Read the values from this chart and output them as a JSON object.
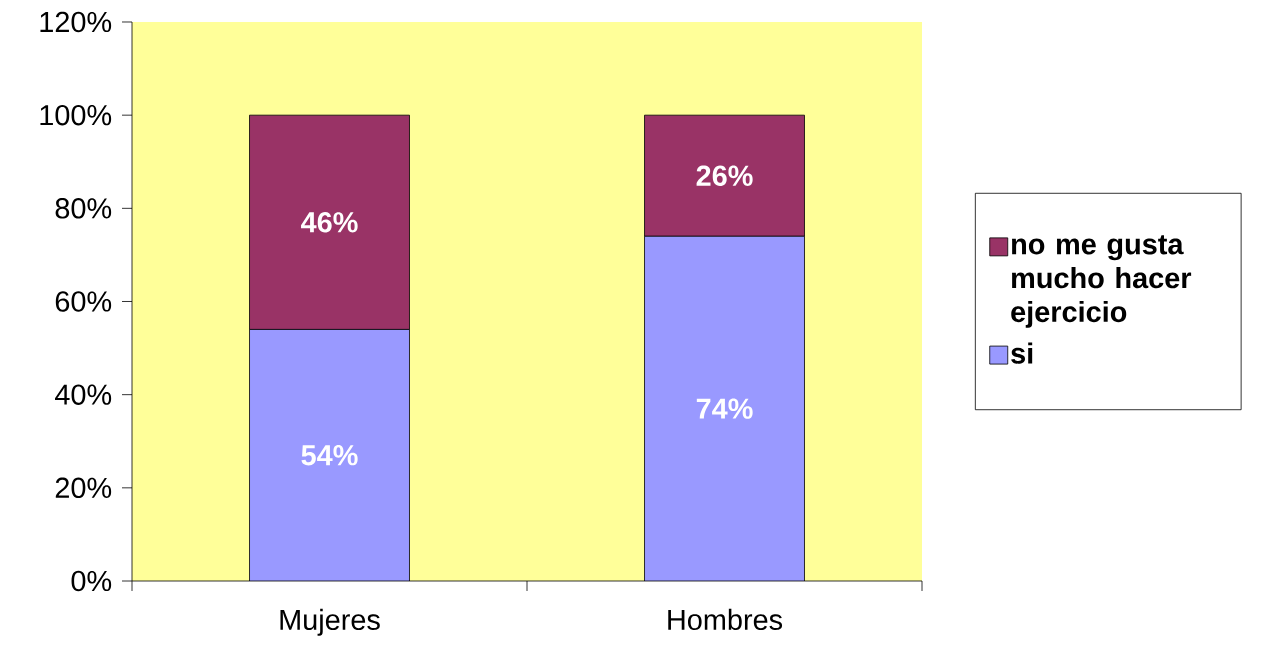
{
  "chart_data": {
    "type": "bar",
    "stacked": true,
    "categories": [
      "Mujeres",
      "Hombres"
    ],
    "series": [
      {
        "name": "si",
        "color": "#9999ff",
        "values": [
          54,
          74
        ],
        "value_labels": [
          "54%",
          "74%"
        ]
      },
      {
        "name": "no me gusta mucho hacer ejercicio",
        "color": "#993366",
        "values": [
          46,
          26
        ],
        "value_labels": [
          "46%",
          "26%"
        ]
      }
    ],
    "ylim": [
      0,
      120
    ],
    "yticks": [
      {
        "value": 0,
        "label": "0%"
      },
      {
        "value": 20,
        "label": "20%"
      },
      {
        "value": 40,
        "label": "40%"
      },
      {
        "value": 60,
        "label": "60%"
      },
      {
        "value": 80,
        "label": "80%"
      },
      {
        "value": 100,
        "label": "100%"
      },
      {
        "value": 120,
        "label": "120%"
      }
    ],
    "grid": false,
    "legend": "right"
  }
}
